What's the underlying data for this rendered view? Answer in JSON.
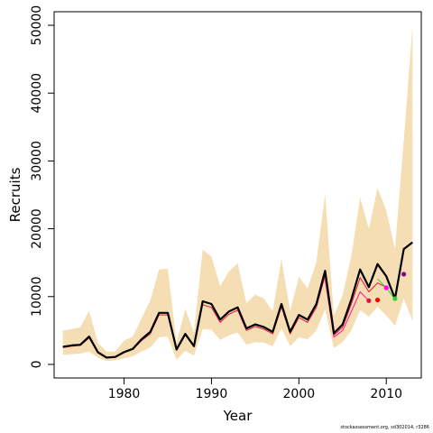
{
  "chart_data": {
    "type": "line",
    "title": "",
    "xlabel": "Year",
    "ylabel": "Recruits",
    "xlim": [
      1972,
      2014
    ],
    "ylim": [
      -2000,
      52000
    ],
    "x_ticks": [
      1980,
      1990,
      2000,
      2010
    ],
    "y_ticks": [
      0,
      10000,
      20000,
      30000,
      40000,
      50000
    ],
    "grid": false,
    "band": {
      "color": "#f5deb3",
      "x": [
        1973,
        1974,
        1975,
        1976,
        1977,
        1978,
        1979,
        1980,
        1981,
        1982,
        1983,
        1984,
        1985,
        1986,
        1987,
        1988,
        1989,
        1990,
        1991,
        1992,
        1993,
        1994,
        1995,
        1996,
        1997,
        1998,
        1999,
        2000,
        2001,
        2002,
        2003,
        2004,
        2005,
        2006,
        2007,
        2008,
        2009,
        2010,
        2011,
        2012,
        2013
      ],
      "lower": [
        1400,
        1500,
        1600,
        1900,
        1000,
        500,
        600,
        900,
        1200,
        1900,
        2500,
        4000,
        4100,
        700,
        2000,
        1300,
        5200,
        5100,
        3600,
        4300,
        4700,
        2900,
        3300,
        3200,
        2700,
        5300,
        2700,
        4000,
        3700,
        5000,
        8100,
        2400,
        3300,
        5000,
        8000,
        7000,
        8500,
        7200,
        5700,
        9700,
        6400
      ],
      "upper": [
        5000,
        5200,
        5500,
        7900,
        3200,
        1900,
        1900,
        3500,
        4100,
        6800,
        9400,
        14000,
        14100,
        3200,
        8200,
        4700,
        16900,
        15900,
        11500,
        13700,
        14900,
        9000,
        10300,
        9700,
        7800,
        15600,
        7900,
        12900,
        11200,
        15100,
        25100,
        7200,
        10200,
        16000,
        24600,
        20000,
        26000,
        22700,
        17000,
        33000,
        50000
      ]
    },
    "series": [
      {
        "color": "#000000",
        "x": [
          1973,
          1974,
          1975,
          1976,
          1977,
          1978,
          1979,
          1980,
          1981,
          1982,
          1983,
          1984,
          1985,
          1986,
          1987,
          1988,
          1989,
          1990,
          1991,
          1992,
          1993,
          1994,
          1995,
          1996,
          1997,
          1998,
          1999,
          2000,
          2001,
          2002,
          2003,
          2004,
          2005,
          2006,
          2007,
          2008,
          2009,
          2010,
          2011,
          2012,
          2013
        ],
        "values": [
          2600,
          2800,
          2900,
          4100,
          1800,
          1000,
          1100,
          1800,
          2300,
          3700,
          4800,
          7600,
          7600,
          2200,
          4500,
          2700,
          9300,
          8900,
          6600,
          7800,
          8400,
          5300,
          5900,
          5500,
          4800,
          8900,
          4800,
          7300,
          6600,
          8900,
          13800,
          4600,
          5900,
          9600,
          14000,
          11400,
          14800,
          13000,
          9700,
          17000,
          18000
        ]
      },
      {
        "color": "#dc143c",
        "x": [
          1973,
          1974,
          1975,
          1976,
          1977,
          1978,
          1979,
          1980,
          1981,
          1982,
          1983,
          1984,
          1985,
          1986,
          1987,
          1988,
          1989,
          1990,
          1991,
          1992,
          1993,
          1994,
          1995,
          1996,
          1997,
          1998,
          1999,
          2000,
          2001,
          2002,
          2003,
          2004,
          2005,
          2006,
          2007,
          2008,
          2009,
          2010
        ],
        "values": [
          2500,
          2700,
          2800,
          3900,
          1700,
          950,
          1050,
          1750,
          2200,
          3500,
          4500,
          7300,
          7300,
          2100,
          4300,
          2600,
          8800,
          8400,
          6200,
          7400,
          8000,
          5000,
          5600,
          5200,
          4500,
          8500,
          4500,
          6900,
          6200,
          8400,
          13100,
          4300,
          5500,
          8900,
          12800,
          10700,
          12000,
          11400
        ]
      },
      {
        "color": "#ff1493",
        "x": [
          2003,
          2004,
          2005,
          2006,
          2007,
          2008
        ],
        "values": [
          12500,
          4000,
          5000,
          7800,
          10700,
          9400
        ]
      },
      {
        "color": "#32cd32",
        "x": [
          2009,
          2010,
          2011
        ],
        "values": [
          12600,
          11300,
          9600
        ]
      }
    ],
    "points": [
      {
        "x": 2008,
        "y": 9400,
        "color": "#dc143c"
      },
      {
        "x": 2009,
        "y": 9500,
        "color": "#ff0000"
      },
      {
        "x": 2010,
        "y": 11300,
        "color": "#ff00ff"
      },
      {
        "x": 2011,
        "y": 9700,
        "color": "#32cd32"
      },
      {
        "x": 2012,
        "y": 13300,
        "color": "#8b008b"
      }
    ]
  },
  "caption": "stockassessment.org, sd302014, r3286"
}
